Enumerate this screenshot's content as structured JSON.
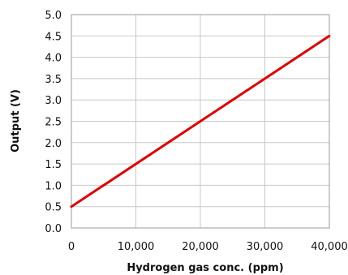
{
  "chart_data": {
    "type": "line",
    "title": "",
    "xlabel": "Hydrogen gas conc. (ppm)",
    "ylabel": "Output (V)",
    "xlim": [
      0,
      40000
    ],
    "ylim": [
      0,
      5.0
    ],
    "x_ticks": [
      "0",
      "10,000",
      "20,000",
      "30,000",
      "40,000"
    ],
    "y_ticks": [
      "0.0",
      "0.5",
      "1.0",
      "1.5",
      "2.0",
      "2.5",
      "3.0",
      "3.5",
      "4.0",
      "4.5",
      "5.0"
    ],
    "grid": true,
    "series": [
      {
        "color": "#e00000",
        "x": [
          0,
          40000
        ],
        "y": [
          0.5,
          4.5
        ]
      }
    ]
  }
}
